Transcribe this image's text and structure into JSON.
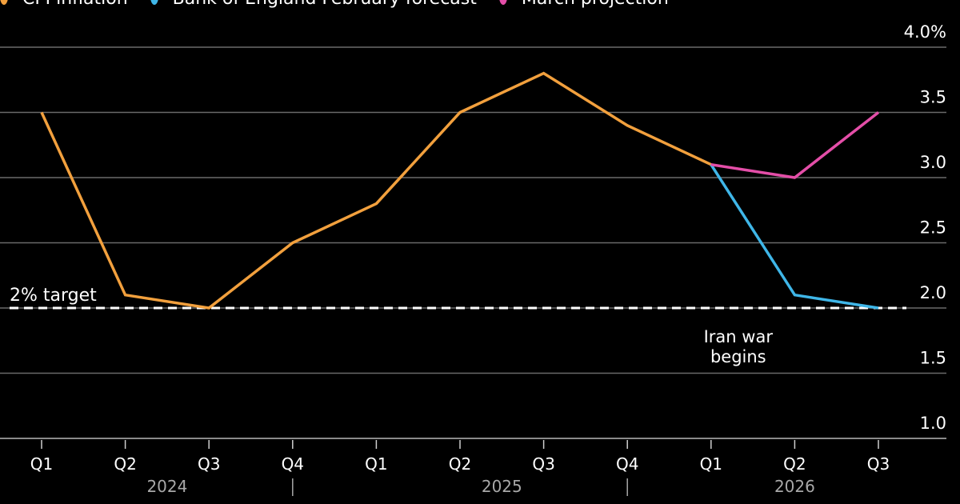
{
  "chart_data": {
    "type": "line",
    "title": "",
    "xlabel": "",
    "ylabel": "",
    "y_unit_suffix": "%",
    "ylim": [
      1.0,
      4.0
    ],
    "yticks": [
      1.0,
      1.5,
      2.0,
      2.5,
      3.0,
      3.5,
      4.0
    ],
    "ytick_labels": [
      "1.0",
      "1.5",
      "2.0",
      "2.5",
      "3.0",
      "3.5",
      "4.0%"
    ],
    "grid": true,
    "y_axis_position": "right",
    "categories": [
      "Q1",
      "Q2",
      "Q3",
      "Q4",
      "Q1",
      "Q2",
      "Q3",
      "Q4",
      "Q1",
      "Q2",
      "Q3"
    ],
    "year_groups": [
      {
        "label": "2024",
        "start": 0,
        "end": 3
      },
      {
        "label": "2025",
        "start": 4,
        "end": 7
      },
      {
        "label": "2026",
        "start": 8,
        "end": 10
      }
    ],
    "legend_position": "top-left",
    "series": [
      {
        "name": "CPI inflation",
        "color": "#f2a03d",
        "values": [
          3.5,
          2.1,
          2.0,
          2.5,
          2.8,
          3.5,
          3.8,
          3.4,
          3.1,
          null,
          null
        ]
      },
      {
        "name": "Bank of England February forecast",
        "color": "#3fb6e8",
        "values": [
          null,
          null,
          null,
          null,
          null,
          null,
          null,
          null,
          3.1,
          2.1,
          2.0
        ]
      },
      {
        "name": "March projection",
        "color": "#e44ea8",
        "values": [
          null,
          null,
          null,
          null,
          null,
          null,
          null,
          null,
          3.1,
          3.0,
          3.5
        ]
      }
    ],
    "reference_lines": [
      {
        "label": "2% target",
        "value": 2.0,
        "style": "dashed",
        "color": "#ffffff"
      }
    ],
    "annotations": [
      {
        "text_lines": [
          "Iran war",
          "begins"
        ],
        "x_index": 8,
        "anchor": "below target line"
      }
    ]
  }
}
